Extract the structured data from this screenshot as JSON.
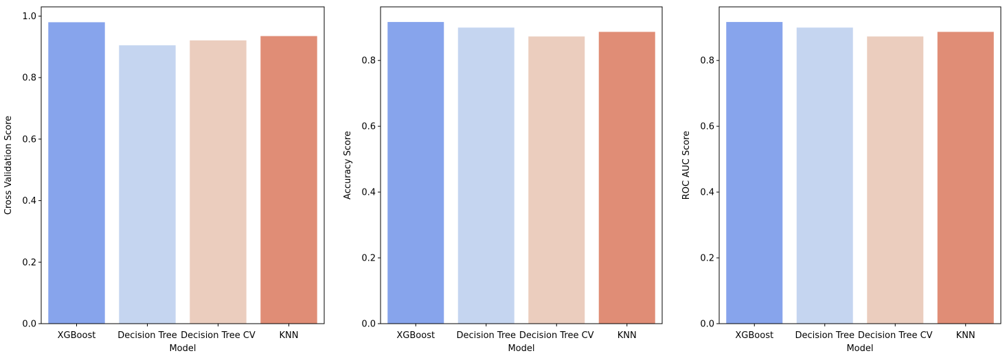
{
  "colors": {
    "bars": [
      "#87a4ec",
      "#c5d5f0",
      "#ebcdbe",
      "#e08d76"
    ],
    "axis": "#000000",
    "background": "#ffffff"
  },
  "chart_data": [
    {
      "type": "bar",
      "categories": [
        "XGBoost",
        "Decision Tree",
        "Decision Tree CV",
        "KNN"
      ],
      "values": [
        0.98,
        0.905,
        0.921,
        0.935
      ],
      "xlabel": "Model",
      "ylabel": "Cross Validation Score",
      "ylim": [
        0,
        1.03
      ],
      "yticks": [
        "0.0",
        "0.2",
        "0.4",
        "0.6",
        "0.8",
        "1.0"
      ],
      "grid": false
    },
    {
      "type": "bar",
      "categories": [
        "XGBoost",
        "Decision Tree",
        "Decision Tree CV",
        "KNN"
      ],
      "values": [
        0.917,
        0.9,
        0.873,
        0.887
      ],
      "xlabel": "Model",
      "ylabel": "Accuracy Score",
      "ylim": [
        0,
        0.963
      ],
      "yticks": [
        "0.0",
        "0.2",
        "0.4",
        "0.6",
        "0.8"
      ],
      "grid": false
    },
    {
      "type": "bar",
      "categories": [
        "XGBoost",
        "Decision Tree",
        "Decision Tree CV",
        "KNN"
      ],
      "values": [
        0.917,
        0.9,
        0.873,
        0.887
      ],
      "xlabel": "Model",
      "ylabel": "ROC AUC Score",
      "ylim": [
        0,
        0.963
      ],
      "yticks": [
        "0.0",
        "0.2",
        "0.4",
        "0.6",
        "0.8"
      ],
      "grid": false
    }
  ]
}
